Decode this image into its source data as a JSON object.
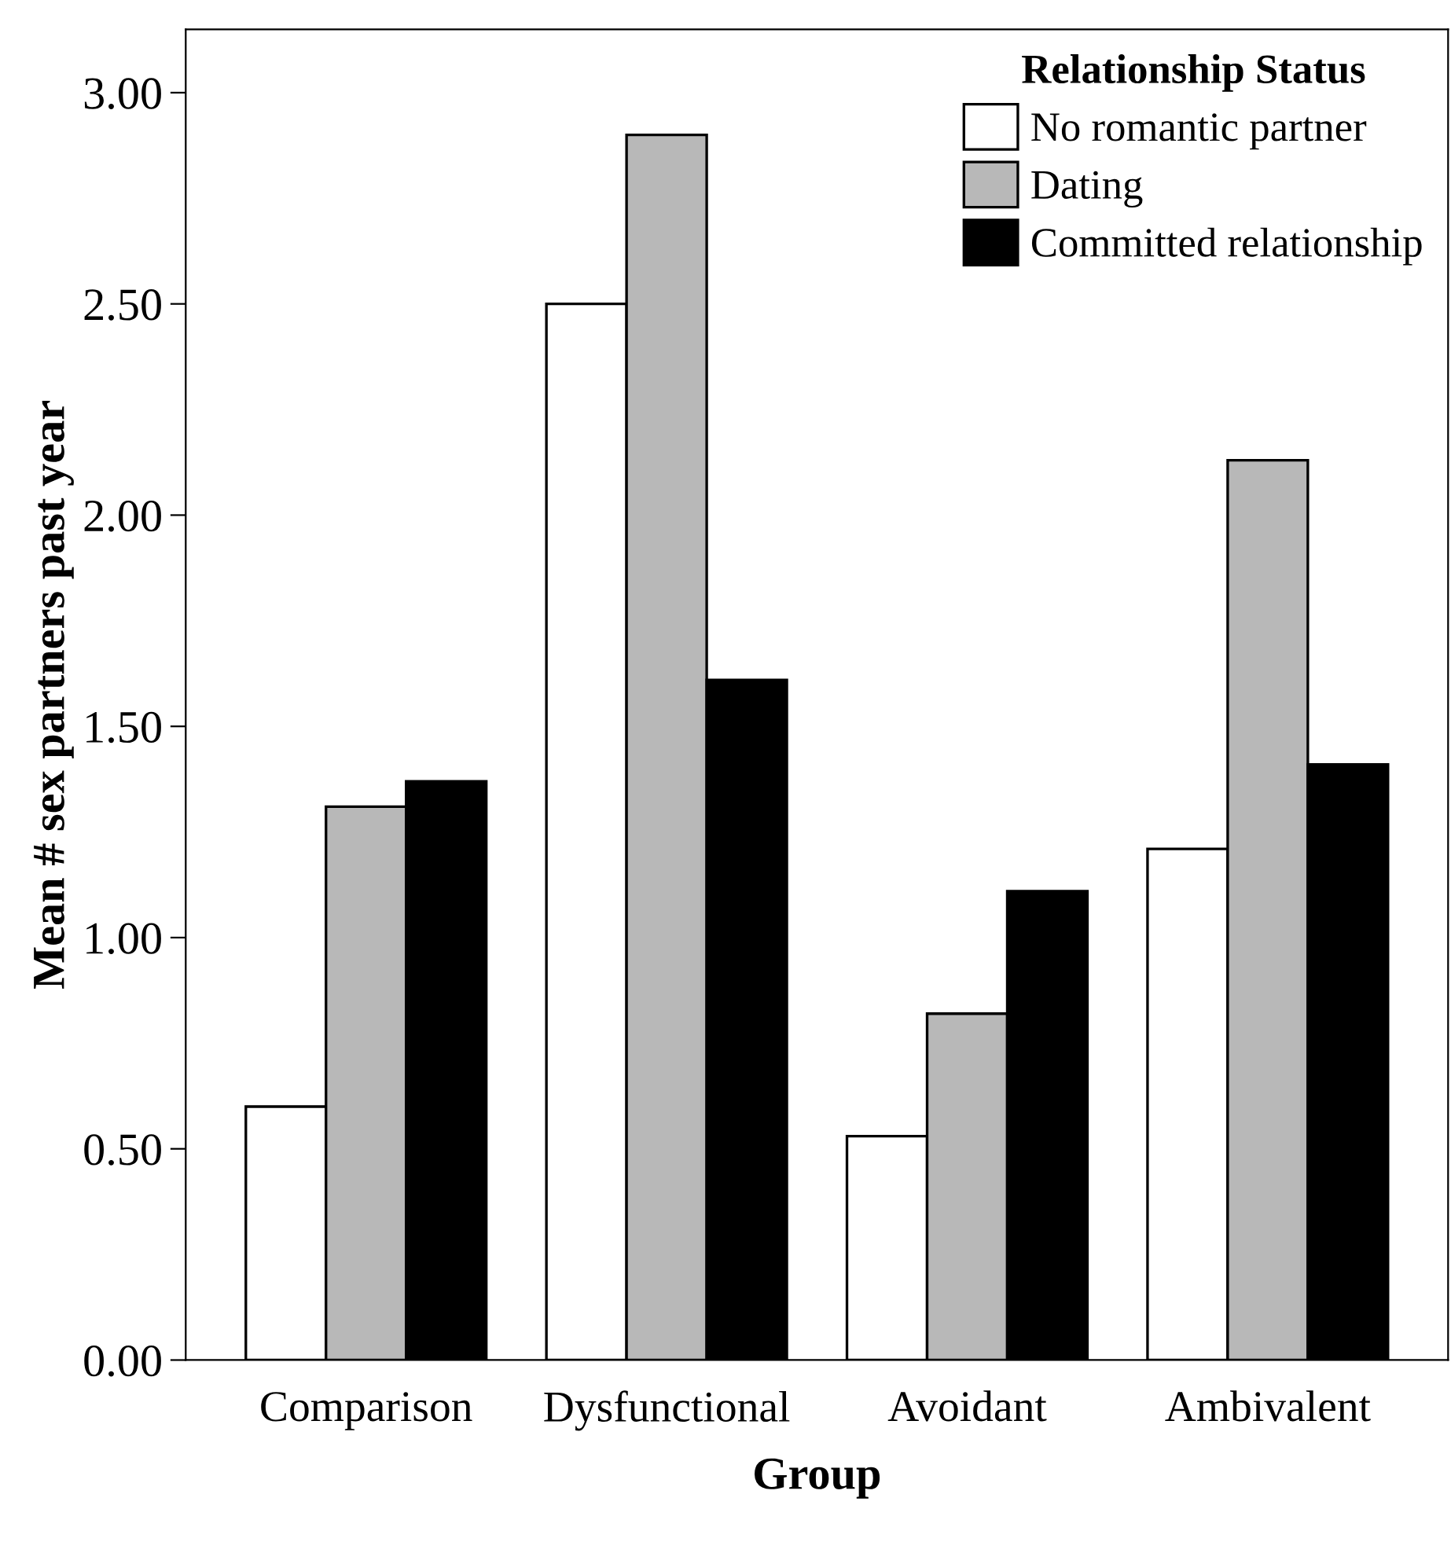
{
  "chart_data": {
    "type": "bar",
    "xlabel": "Group",
    "ylabel": "Mean # sex partners past year",
    "categories": [
      "Comparison",
      "Dysfunctional",
      "Avoidant",
      "Ambivalent"
    ],
    "series": [
      {
        "name": "No romantic partner",
        "color": "#ffffff",
        "values": [
          0.6,
          2.5,
          0.53,
          1.21
        ]
      },
      {
        "name": "Dating",
        "color": "#b8b8b8",
        "values": [
          1.31,
          2.9,
          0.82,
          2.13
        ]
      },
      {
        "name": "Committed relationship",
        "color": "#000000",
        "values": [
          1.37,
          1.61,
          1.11,
          1.41
        ]
      }
    ],
    "legend_title": "Relationship Status",
    "legend": "top right",
    "ylim": [
      0,
      3.15
    ],
    "yticks": [
      {
        "value": 0,
        "label": "0.00"
      },
      {
        "value": 0.5,
        "label": "0.50"
      },
      {
        "value": 1,
        "label": "1.00"
      },
      {
        "value": 1.5,
        "label": "1.50"
      },
      {
        "value": 2,
        "label": "2.00"
      },
      {
        "value": 2.5,
        "label": "2.50"
      },
      {
        "value": 3,
        "label": "3.00"
      }
    ],
    "grid": false
  }
}
